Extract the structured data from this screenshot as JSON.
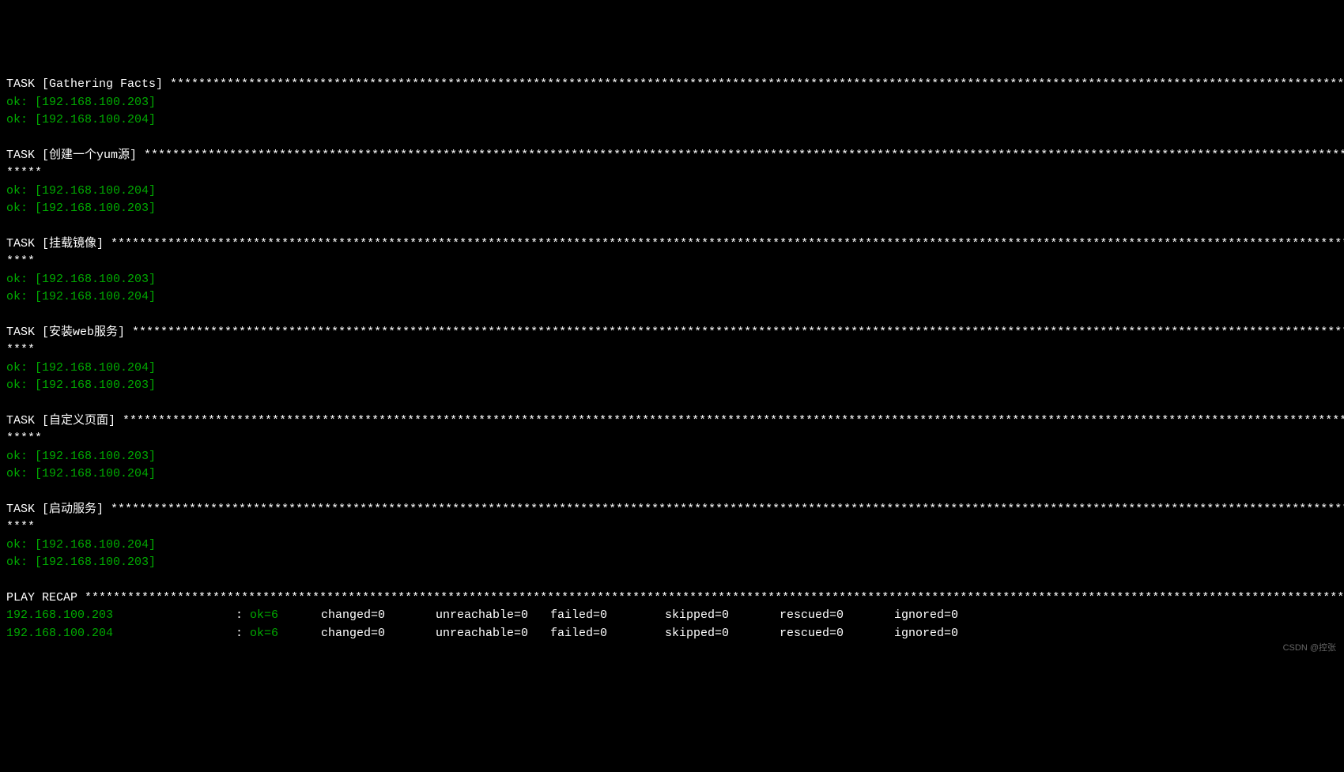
{
  "colors": {
    "background": "#000000",
    "text": "#ffffff",
    "ok": "#00aa00"
  },
  "tasks": [
    {
      "name": "Gathering Facts",
      "extra_stars": "",
      "results": [
        {
          "status": "ok",
          "host": "192.168.100.203"
        },
        {
          "status": "ok",
          "host": "192.168.100.204"
        }
      ]
    },
    {
      "name": "创建一个yum源",
      "extra_stars": "*****",
      "results": [
        {
          "status": "ok",
          "host": "192.168.100.204"
        },
        {
          "status": "ok",
          "host": "192.168.100.203"
        }
      ]
    },
    {
      "name": "挂载镜像",
      "extra_stars": "****",
      "results": [
        {
          "status": "ok",
          "host": "192.168.100.203"
        },
        {
          "status": "ok",
          "host": "192.168.100.204"
        }
      ]
    },
    {
      "name": "安装web服务",
      "extra_stars": "****",
      "results": [
        {
          "status": "ok",
          "host": "192.168.100.204"
        },
        {
          "status": "ok",
          "host": "192.168.100.203"
        }
      ]
    },
    {
      "name": "自定义页面",
      "extra_stars": "*****",
      "results": [
        {
          "status": "ok",
          "host": "192.168.100.203"
        },
        {
          "status": "ok",
          "host": "192.168.100.204"
        }
      ]
    },
    {
      "name": "启动服务",
      "extra_stars": "****",
      "results": [
        {
          "status": "ok",
          "host": "192.168.100.204"
        },
        {
          "status": "ok",
          "host": "192.168.100.203"
        }
      ]
    }
  ],
  "recap": {
    "header": "PLAY RECAP",
    "rows": [
      {
        "host": "192.168.100.203",
        "ok": "ok=6",
        "changed": "changed=0",
        "unreachable": "unreachable=0",
        "failed": "failed=0",
        "skipped": "skipped=0",
        "rescued": "rescued=0",
        "ignored": "ignored=0"
      },
      {
        "host": "192.168.100.204",
        "ok": "ok=6",
        "changed": "changed=0",
        "unreachable": "unreachable=0",
        "failed": "failed=0",
        "skipped": "skipped=0",
        "rescued": "rescued=0",
        "ignored": "ignored=0"
      }
    ]
  },
  "labels": {
    "task_prefix": "TASK",
    "ok_prefix": "ok:",
    "colon": ":"
  },
  "watermark": "CSDN @控张"
}
